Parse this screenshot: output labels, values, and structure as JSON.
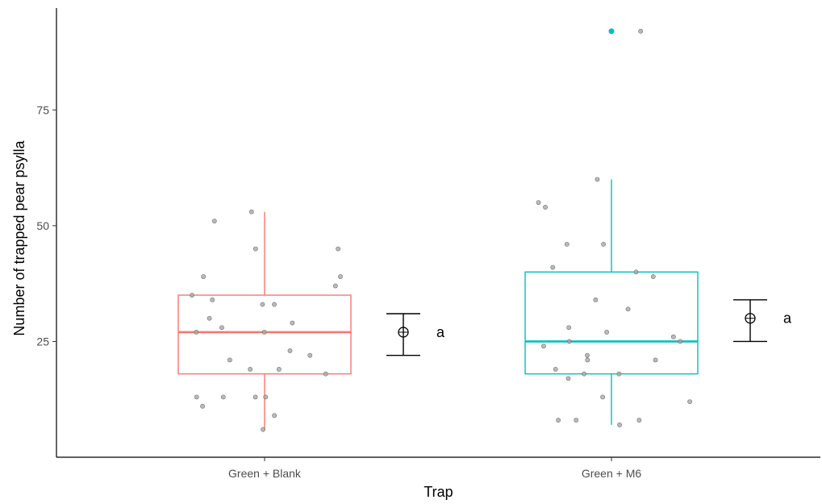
{
  "chart_data": {
    "type": "boxplot",
    "xlabel": "Trap",
    "ylabel": "Number of trapped pear psylla",
    "ylim": [
      0,
      97
    ],
    "y_ticks": [
      25,
      50,
      75
    ],
    "y_tick_labels": [
      "25",
      "50",
      "75"
    ],
    "grid": false,
    "legend": "none",
    "groups": [
      {
        "name": "Green + Blank",
        "color": "#F8766D",
        "box": {
          "q1": 18,
          "median": 27,
          "q3": 35,
          "whisker_low": 6,
          "whisker_high": 53
        },
        "outliers": [],
        "mean": 27,
        "mean_ci": [
          22,
          31
        ],
        "significance": "a",
        "points": [
          6,
          9,
          11,
          13,
          13,
          13,
          13,
          18,
          19,
          19,
          21,
          22,
          23,
          27,
          27,
          28,
          29,
          30,
          33,
          33,
          34,
          35,
          37,
          39,
          39,
          45,
          45,
          51,
          53
        ]
      },
      {
        "name": "Green + M6",
        "color": "#00BFC4",
        "box": {
          "q1": 18,
          "median": 25,
          "q3": 40,
          "whisker_low": 7,
          "whisker_high": 60
        },
        "outliers": [
          92
        ],
        "mean": 30,
        "mean_ci": [
          25,
          34
        ],
        "significance": "a",
        "points": [
          7,
          8,
          8,
          8,
          12,
          13,
          17,
          18,
          18,
          19,
          21,
          21,
          22,
          24,
          25,
          25,
          26,
          27,
          28,
          32,
          34,
          39,
          40,
          41,
          46,
          46,
          54,
          55,
          60,
          92
        ]
      }
    ]
  }
}
